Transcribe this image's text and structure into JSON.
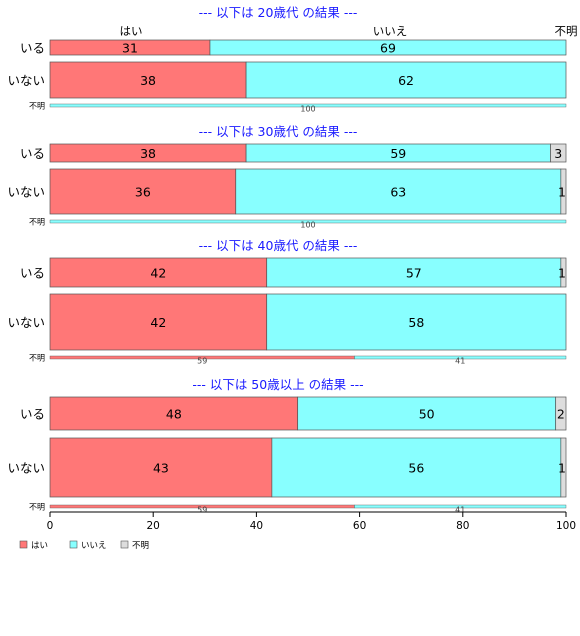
{
  "chart_data": {
    "type": "bar",
    "orientation": "horizontal",
    "stacked": true,
    "xlim": [
      0,
      100
    ],
    "xticks": [
      0,
      20,
      40,
      60,
      80,
      100
    ],
    "column_headers": [
      "はい",
      "いいえ",
      "不明"
    ],
    "colors": {
      "はい": "#ff7777",
      "いいえ": "#88ffff",
      "不明": "#dddddd"
    },
    "legend": {
      "placement": "bottom-left",
      "entries": [
        {
          "label": "はい",
          "color": "#ff7777"
        },
        {
          "label": "いいえ",
          "color": "#88ffff"
        },
        {
          "label": "不明",
          "color": "#dddddd"
        }
      ]
    },
    "groups": [
      {
        "title": "--- 以下は 20歳代 の結果 ---",
        "rows": [
          {
            "label": "いる",
            "values": [
              31,
              69,
              0
            ],
            "labels": [
              "31",
              "69",
              ""
            ]
          },
          {
            "label": "いない",
            "values": [
              38,
              62,
              0
            ],
            "labels": [
              "38",
              "62",
              ""
            ]
          },
          {
            "label": "不明",
            "small": true,
            "values": [
              0,
              100,
              0
            ],
            "labels": [
              "",
              "100",
              ""
            ]
          }
        ]
      },
      {
        "title": "--- 以下は 30歳代 の結果 ---",
        "rows": [
          {
            "label": "いる",
            "values": [
              38,
              59,
              3
            ],
            "labels": [
              "38",
              "59",
              "3"
            ]
          },
          {
            "label": "いない",
            "values": [
              36,
              63,
              1
            ],
            "labels": [
              "36",
              "63",
              "1"
            ]
          },
          {
            "label": "不明",
            "small": true,
            "values": [
              0,
              100,
              0
            ],
            "labels": [
              "",
              "100",
              ""
            ]
          }
        ]
      },
      {
        "title": "--- 以下は 40歳代 の結果 ---",
        "rows": [
          {
            "label": "いる",
            "values": [
              42,
              57,
              1
            ],
            "labels": [
              "42",
              "57",
              "1"
            ]
          },
          {
            "label": "いない",
            "values": [
              42,
              58,
              0
            ],
            "labels": [
              "42",
              "58",
              ""
            ]
          },
          {
            "label": "不明",
            "small": true,
            "values": [
              59,
              41,
              0
            ],
            "labels": [
              "59",
              "41",
              ""
            ]
          }
        ]
      },
      {
        "title": "--- 以下は 50歳以上 の結果 ---",
        "rows": [
          {
            "label": "いる",
            "values": [
              48,
              50,
              2
            ],
            "labels": [
              "48",
              "50",
              "2"
            ]
          },
          {
            "label": "いない",
            "values": [
              43,
              56,
              1
            ],
            "labels": [
              "43",
              "56",
              "1"
            ]
          },
          {
            "label": "不明",
            "small": true,
            "values": [
              59,
              41,
              0
            ],
            "labels": [
              "59",
              "41",
              ""
            ]
          }
        ]
      }
    ]
  }
}
